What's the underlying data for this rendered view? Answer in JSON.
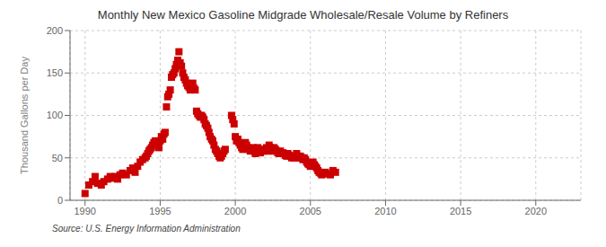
{
  "chart_data": {
    "type": "scatter",
    "title": "Monthly New Mexico Gasoline Midgrade Wholesale/Resale Volume by Refiners",
    "ylabel": "Thousand Gallons per Day",
    "annotations": [
      "Source: U.S. Energy Information Administration"
    ],
    "color": "#cc0000",
    "marker": "square",
    "grid": true,
    "xlim": [
      1989,
      2023
    ],
    "ylim": [
      0,
      200
    ],
    "xticks": [
      1990,
      1995,
      2000,
      2005,
      2010,
      2015,
      2020
    ],
    "yticks": [
      0,
      50,
      100,
      150,
      200
    ],
    "x": [
      1990.0,
      1990.25,
      1990.5,
      1990.67,
      1990.83,
      1991.08,
      1991.25,
      1991.5,
      1991.67,
      1991.75,
      1992.0,
      1992.17,
      1992.33,
      1992.5,
      1992.75,
      1993.0,
      1993.17,
      1993.33,
      1993.5,
      1993.67,
      1993.83,
      1994.0,
      1994.08,
      1994.17,
      1994.25,
      1994.33,
      1994.42,
      1994.5,
      1994.58,
      1994.67,
      1994.75,
      1994.83,
      1994.92,
      1995.0,
      1995.08,
      1995.17,
      1995.25,
      1995.33,
      1995.42,
      1995.5,
      1995.58,
      1995.67,
      1995.75,
      1995.83,
      1995.92,
      1996.0,
      1996.08,
      1996.17,
      1996.25,
      1996.33,
      1996.42,
      1996.5,
      1996.58,
      1996.67,
      1996.75,
      1996.83,
      1996.92,
      1997.0,
      1997.08,
      1997.17,
      1997.25,
      1997.33,
      1997.42,
      1997.5,
      1997.58,
      1997.67,
      1997.75,
      1997.83,
      1997.92,
      1998.0,
      1998.08,
      1998.17,
      1998.25,
      1998.33,
      1998.42,
      1998.5,
      1998.58,
      1998.67,
      1998.75,
      1998.83,
      1998.92,
      1999.0,
      1999.08,
      1999.17,
      1999.25,
      1999.33,
      1999.75,
      1999.83,
      1999.92,
      2000.0,
      2000.08,
      2000.17,
      2000.25,
      2000.33,
      2000.42,
      2000.5,
      2000.58,
      2000.67,
      2000.75,
      2000.83,
      2000.92,
      2001.0,
      2001.08,
      2001.17,
      2001.25,
      2001.33,
      2001.42,
      2001.5,
      2001.58,
      2001.67,
      2001.75,
      2001.83,
      2001.92,
      2002.0,
      2002.08,
      2002.17,
      2002.25,
      2002.33,
      2002.42,
      2002.5,
      2002.58,
      2002.67,
      2002.75,
      2002.83,
      2002.92,
      2003.0,
      2003.08,
      2003.17,
      2003.25,
      2003.33,
      2003.42,
      2003.5,
      2003.58,
      2003.67,
      2003.75,
      2003.83,
      2003.92,
      2004.0,
      2004.08,
      2004.17,
      2004.25,
      2004.33,
      2004.42,
      2004.5,
      2004.58,
      2004.67,
      2004.75,
      2004.83,
      2004.92,
      2005.0,
      2005.08,
      2005.17,
      2005.25,
      2005.33,
      2005.42,
      2005.5,
      2005.58,
      2005.67,
      2005.75,
      2006.0,
      2006.17,
      2006.33,
      2006.5,
      2006.67
    ],
    "values": [
      8,
      18,
      22,
      28,
      20,
      18,
      22,
      25,
      28,
      26,
      28,
      25,
      30,
      32,
      30,
      35,
      38,
      33,
      40,
      45,
      48,
      50,
      52,
      55,
      58,
      60,
      62,
      65,
      68,
      70,
      66,
      65,
      62,
      70,
      75,
      72,
      78,
      80,
      110,
      122,
      125,
      130,
      145,
      148,
      150,
      155,
      160,
      165,
      175,
      162,
      158,
      150,
      145,
      142,
      138,
      135,
      133,
      130,
      135,
      138,
      132,
      130,
      105,
      102,
      100,
      98,
      100,
      98,
      95,
      90,
      88,
      85,
      80,
      75,
      72,
      70,
      65,
      60,
      58,
      55,
      52,
      50,
      52,
      55,
      58,
      60,
      100,
      95,
      90,
      75,
      70,
      72,
      68,
      65,
      62,
      60,
      65,
      68,
      65,
      62,
      60,
      58,
      60,
      62,
      58,
      55,
      60,
      62,
      58,
      56,
      58,
      60,
      58,
      60,
      62,
      58,
      65,
      62,
      60,
      58,
      62,
      60,
      58,
      56,
      55,
      58,
      55,
      56,
      55,
      53,
      52,
      55,
      53,
      52,
      50,
      52,
      50,
      52,
      55,
      52,
      50,
      52,
      50,
      48,
      50,
      48,
      45,
      43,
      42,
      40,
      43,
      45,
      42,
      40,
      38,
      35,
      33,
      32,
      30,
      33,
      31,
      30,
      35,
      33
    ]
  }
}
